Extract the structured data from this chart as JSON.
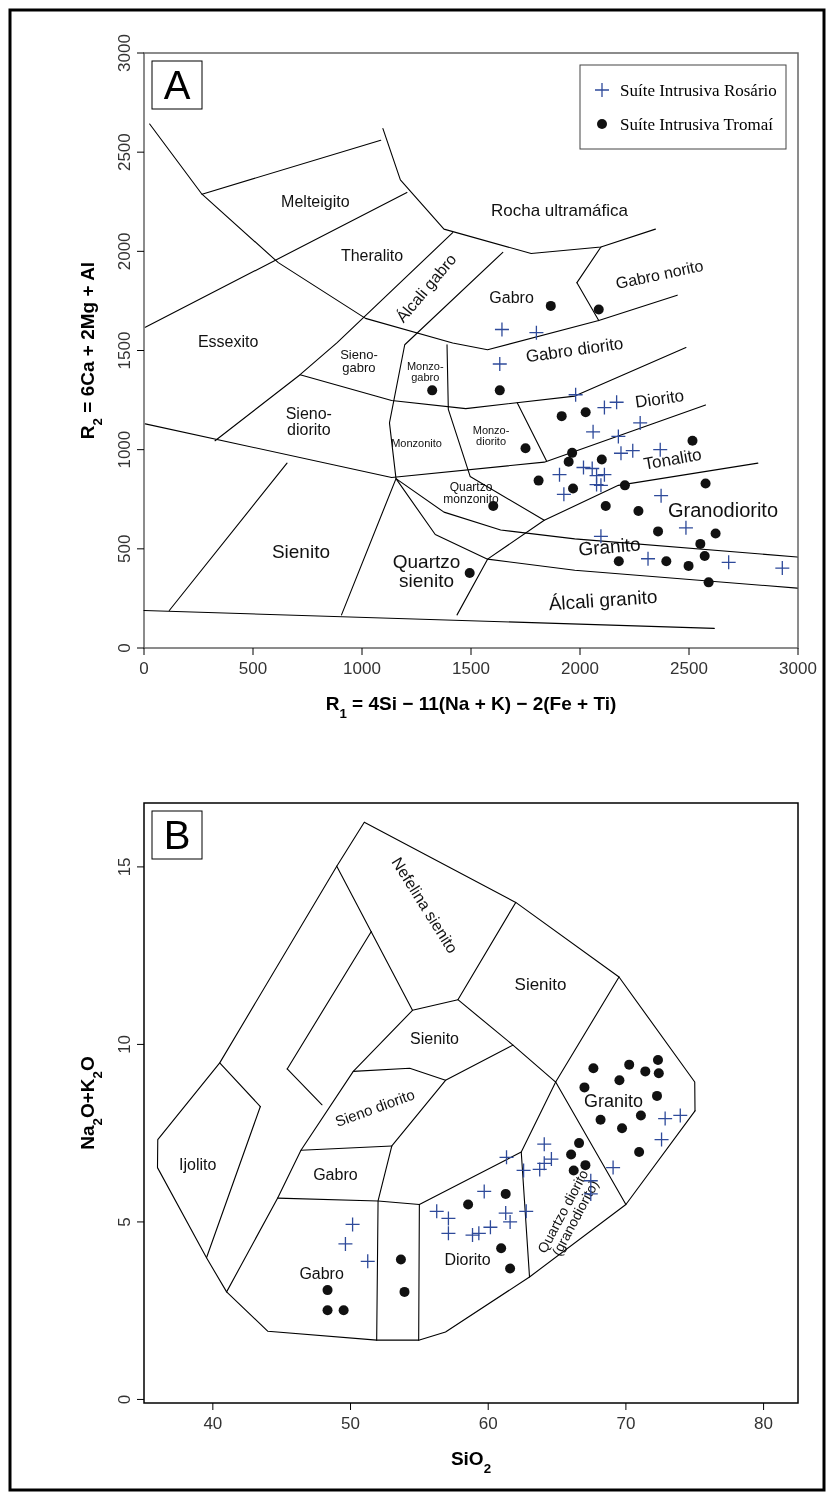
{
  "chart_data": [
    {
      "type": "scatter",
      "title": "A",
      "xlabel": "R$_{1}$ = 4Si − 11(Na + K) − 2(Fe + Ti)",
      "ylabel": "R$_{2}$ = 6Ca + 2Mg + Al",
      "xlim": [
        0,
        3000
      ],
      "ylim": [
        0,
        3000
      ],
      "xticks": [
        0,
        500,
        1000,
        1500,
        2000,
        2500,
        3000
      ],
      "yticks": [
        0,
        500,
        1000,
        1500,
        2000,
        2500,
        3000
      ],
      "legend": "top right",
      "series": [
        {
          "type": "line",
          "color": "#000000",
          "x": [
            26,
            266,
            616,
            1016,
            1416,
            1576,
            2086,
            2446
          ],
          "values": [
            2642,
            2288,
            1943,
            1662,
            1538,
            1504,
            1651,
            1779
          ]
        },
        {
          "type": "line",
          "color": "#000000",
          "x": [
            1096,
            1176,
            1376,
            1776,
            2096,
            2346
          ],
          "values": [
            2619,
            2360,
            2112,
            1989,
            2022,
            2112
          ]
        },
        {
          "type": "line",
          "color": "#000000",
          "x": [
            266,
            1086
          ],
          "values": [
            2288,
            2560
          ]
        },
        {
          "type": "line",
          "color": "#000000",
          "x": [
            6,
            1206
          ],
          "values": [
            1617,
            2297
          ]
        },
        {
          "type": "line",
          "color": "#000000",
          "x": [
            1986,
            2096
          ],
          "values": [
            1842,
            2022
          ]
        },
        {
          "type": "line",
          "color": "#000000",
          "x": [
            1986,
            2086
          ],
          "values": [
            1842,
            1651
          ]
        },
        {
          "type": "line",
          "color": "#000000",
          "x": [
            326,
            716,
            886,
            1416
          ],
          "values": [
            1045,
            1378,
            1540,
            2094
          ]
        },
        {
          "type": "line",
          "color": "#000000",
          "x": [
            1646,
            1196,
            1126,
            1156,
            1336,
            1576,
            1976,
            2996
          ],
          "values": [
            1995,
            1529,
            1135,
            854,
            572,
            448,
            392,
            302
          ]
        },
        {
          "type": "line",
          "color": "#000000",
          "x": [
            1390,
            1396,
            1496,
            1836
          ],
          "values": [
            1529,
            1203,
            865,
            644
          ]
        },
        {
          "type": "line",
          "color": "#000000",
          "x": [
            1436,
            1576,
            1836,
            2176,
            2816
          ],
          "values": [
            167,
            448,
            644,
            820,
            932
          ]
        },
        {
          "type": "line",
          "color": "#000000",
          "x": [
            906,
            1156,
            1376,
            1636,
            1976,
            2996
          ],
          "values": [
            167,
            854,
            685,
            595,
            550,
            459
          ]
        },
        {
          "type": "line",
          "color": "#000000",
          "x": [
            116,
            656
          ],
          "values": [
            189,
            932
          ]
        },
        {
          "type": "line",
          "color": "#000000",
          "x": [
            0,
            2616
          ],
          "values": [
            189,
            99
          ]
        },
        {
          "type": "line",
          "color": "#000000",
          "x": [
            6,
            1136,
            1836,
            2576
          ],
          "values": [
            1130,
            860,
            937,
            1225
          ]
        },
        {
          "type": "line",
          "color": "#000000",
          "x": [
            716,
            1136,
            1476,
            1976,
            2486
          ],
          "values": [
            1378,
            1248,
            1207,
            1270,
            1515
          ]
        },
        {
          "type": "line",
          "color": "#000000",
          "x": [
            1712,
            1846
          ],
          "values": [
            1236,
            944
          ]
        },
        {
          "name": "Suíte Intrusiva Rosário",
          "marker": "cross",
          "color": "#2e4a9a",
          "x": [
            1642,
            1800,
            1632,
            1980,
            2112,
            2168,
            2060,
            2176,
            2276,
            2188,
            2242,
            2368,
            1906,
            2016,
            2056,
            2076,
            2112,
            2076,
            2096,
            1926,
            2372,
            2486,
            2096,
            2312,
            2682,
            2928
          ],
          "values": [
            1606,
            1590,
            1432,
            1277,
            1212,
            1239,
            1090,
            1067,
            1135,
            982,
            995,
            1000,
            874,
            910,
            905,
            869,
            874,
            824,
            820,
            775,
            768,
            606,
            563,
            450,
            432,
            403
          ]
        },
        {
          "name": "Suíte Intrusiva Tromaí",
          "marker": "circle",
          "color": "#111111",
          "x": [
            1866,
            2086,
            1322,
            1632,
            1916,
            2026,
            2516,
            1750,
            1964,
            1948,
            2100,
            1810,
            1968,
            2206,
            2576,
            1602,
            2118,
            2268,
            2358,
            2622,
            2552,
            2572,
            2178,
            2396,
            2498,
            2590,
            1494
          ],
          "values": [
            1725,
            1707,
            1299,
            1299,
            1169,
            1189,
            1045,
            1007,
            984,
            939,
            950,
            844,
            804,
            820,
            829,
            716,
            716,
            691,
            588,
            577,
            525,
            464,
            437,
            437,
            414,
            331,
            378
          ]
        }
      ],
      "annotations": [
        "Melteigito",
        "Rocha ultramáfica",
        "Theralito",
        "Álcali gabro",
        "Gabro",
        "Gabro norito",
        "Essexito",
        "Sieno-\ngabro",
        "Monzo-\ngabro",
        "Gabro diorito",
        "Sieno-\ndiorito",
        "Monzonito",
        "Monzo-\ndiorito",
        "Diorito",
        "Tonalito",
        "Quartzo\nmonzonito",
        "Granodiorito",
        "Granito",
        "Sienito",
        "Quartzo\nsienito",
        "Álcali granito"
      ]
    },
    {
      "type": "scatter",
      "title": "B",
      "xlabel": "SiO$_{2}$",
      "ylabel": "Na$_{2}$O+K$_{2}$O",
      "xlim": [
        35,
        82.5
      ],
      "ylim": [
        -0.1,
        16.8
      ],
      "xticks": [
        40,
        50,
        60,
        70,
        80
      ],
      "yticks": [
        0,
        5,
        10,
        15
      ],
      "series": [
        {
          "type": "line",
          "color": "#000000",
          "x": [
            35.98,
            36.0,
            40.5,
            49.0,
            51.0,
            62.0,
            69.5,
            75.0,
            75.02
          ],
          "values": [
            6.53,
            7.32,
            9.48,
            15.02,
            16.26,
            14.0,
            11.9,
            8.94,
            8.13
          ]
        },
        {
          "type": "line",
          "color": "#000000",
          "x": [
            35.98,
            39.54,
            41.0,
            44.0,
            51.9,
            54.95,
            56.9,
            63.0,
            70.0,
            75.02
          ],
          "values": [
            6.53,
            3.99,
            3.03,
            1.92,
            1.67,
            1.67,
            1.9,
            3.45,
            5.49,
            8.13
          ]
        },
        {
          "type": "line",
          "color": "#000000",
          "x": [
            49.0,
            54.5,
            57.8,
            62.0
          ],
          "values": [
            15.02,
            10.96,
            11.26,
            14.0
          ]
        },
        {
          "type": "line",
          "color": "#000000",
          "x": [
            57.8,
            61.8,
            64.9,
            69.5
          ],
          "values": [
            11.26,
            9.98,
            8.94,
            11.9
          ]
        },
        {
          "type": "line",
          "color": "#000000",
          "x": [
            64.9,
            70.0
          ],
          "values": [
            8.94,
            5.49
          ]
        },
        {
          "type": "line",
          "color": "#000000",
          "x": [
            41.0,
            44.7,
            46.4,
            50.2,
            54.5
          ],
          "values": [
            3.03,
            5.67,
            7.02,
            9.24,
            10.96
          ]
        },
        {
          "type": "line",
          "color": "#000000",
          "x": [
            50.2,
            54.3,
            56.9,
            61.8
          ],
          "values": [
            9.24,
            9.33,
            8.99,
            9.98
          ]
        },
        {
          "type": "line",
          "color": "#000000",
          "x": [
            51.9,
            52.0,
            53.0,
            56.9
          ],
          "values": [
            1.67,
            5.59,
            7.14,
            8.99
          ]
        },
        {
          "type": "line",
          "color": "#000000",
          "x": [
            46.4,
            53.0
          ],
          "values": [
            7.02,
            7.14
          ]
        },
        {
          "type": "line",
          "color": "#000000",
          "x": [
            44.7,
            52.0,
            55.0,
            62.4,
            64.9
          ],
          "values": [
            5.67,
            5.59,
            5.49,
            6.97,
            8.94
          ]
        },
        {
          "type": "line",
          "color": "#000000",
          "x": [
            62.4,
            63.0
          ],
          "values": [
            6.97,
            3.45
          ]
        },
        {
          "type": "line",
          "color": "#000000",
          "x": [
            54.95,
            55.0
          ],
          "values": [
            1.67,
            5.49
          ]
        },
        {
          "type": "line",
          "color": "#000000",
          "x": [
            40.5,
            43.45
          ],
          "values": [
            9.48,
            8.25
          ]
        },
        {
          "type": "line",
          "color": "#000000",
          "x": [
            39.54,
            43.45
          ],
          "values": [
            3.99,
            8.25
          ]
        },
        {
          "type": "line",
          "color": "#000000",
          "x": [
            45.4,
            47.93
          ],
          "values": [
            9.31,
            8.3
          ]
        },
        {
          "type": "line",
          "color": "#000000",
          "x": [
            45.4,
            51.51
          ],
          "values": [
            9.31,
            13.18
          ]
        },
        {
          "marker": "cross",
          "color": "#2e4a9a",
          "x": [
            50.15,
            49.63,
            51.25,
            56.26,
            57.11,
            57.11,
            58.86,
            59.32,
            59.71,
            60.16,
            61.27,
            61.33,
            61.59,
            62.57,
            62.76,
            63.74,
            64.07,
            64.07,
            64.59,
            67.45,
            67.45,
            69.07,
            72.59,
            72.85,
            73.95
          ],
          "values": [
            4.93,
            4.38,
            3.89,
            5.3,
            5.1,
            4.68,
            4.63,
            4.68,
            5.86,
            4.85,
            5.25,
            6.82,
            5.0,
            6.45,
            5.3,
            6.48,
            7.19,
            6.65,
            6.77,
            6.16,
            5.79,
            6.53,
            7.32,
            7.91,
            8.0
          ]
        },
        {
          "marker": "circle",
          "color": "#111111",
          "x": [
            67.64,
            70.24,
            72.33,
            71.41,
            72.39,
            69.53,
            66.99,
            72.26,
            68.16,
            69.72,
            71.09,
            66.6,
            66.02,
            67.06,
            66.21,
            70.96,
            61.27,
            58.54,
            60.94,
            61.59,
            53.66,
            53.92,
            48.33,
            48.33,
            49.5
          ],
          "values": [
            9.33,
            9.43,
            9.56,
            9.24,
            9.19,
            8.99,
            8.79,
            8.55,
            7.88,
            7.64,
            8.0,
            7.22,
            6.9,
            6.6,
            6.45,
            6.97,
            5.79,
            5.49,
            4.26,
            3.69,
            3.94,
            3.03,
            3.08,
            2.51,
            2.51
          ]
        }
      ],
      "annotations": [
        "Nefelina sienito",
        "Sienito",
        "Sienito",
        "Sieno diorito",
        "Gabro",
        "Ijolito",
        "Granito",
        "Diorito",
        "Gabro",
        "Quartzo diorito\n(granodiorito)"
      ]
    }
  ]
}
